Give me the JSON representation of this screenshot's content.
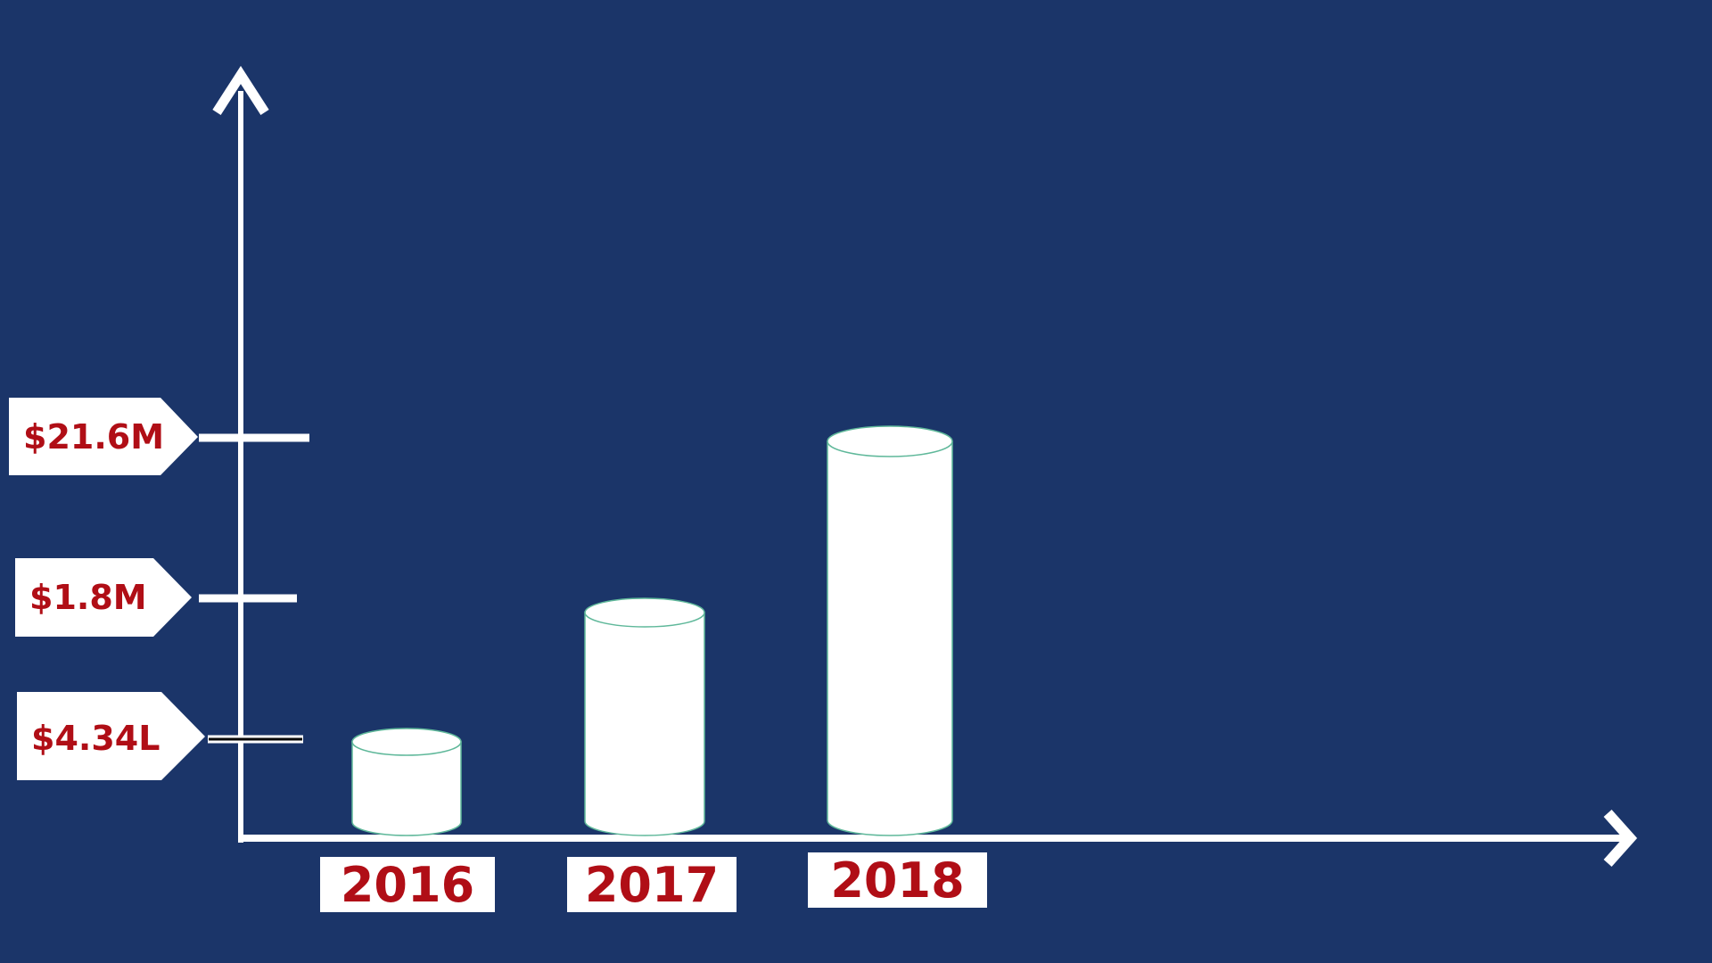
{
  "colors": {
    "background": "#1b3569",
    "axis": "#ffffff",
    "bar_fill": "#ffffff",
    "bar_outline": "#5fb89a",
    "label_fill": "#ffffff",
    "label_text": "#b00e16",
    "tick_marker_dark": "#0a0a0a"
  },
  "chart_data": {
    "type": "bar",
    "style": "3d-cylinders",
    "categories": [
      "2016",
      "2017",
      "2018"
    ],
    "values": [
      1,
      2,
      3
    ],
    "value_labels": [
      "$4.34L",
      "$1.8M",
      "$21.6M"
    ],
    "title": "",
    "xlabel": "",
    "ylabel": "",
    "grid": false,
    "legend": "none"
  }
}
